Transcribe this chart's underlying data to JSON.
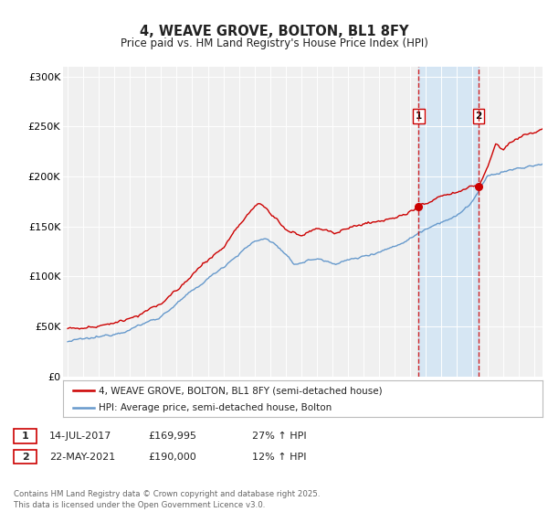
{
  "title": "4, WEAVE GROVE, BOLTON, BL1 8FY",
  "subtitle": "Price paid vs. HM Land Registry's House Price Index (HPI)",
  "legend_entry1": "4, WEAVE GROVE, BOLTON, BL1 8FY (semi-detached house)",
  "legend_entry2": "HPI: Average price, semi-detached house, Bolton",
  "annotation1_label": "1",
  "annotation1_date": "14-JUL-2017",
  "annotation1_price": "£169,995",
  "annotation1_hpi": "27% ↑ HPI",
  "annotation2_label": "2",
  "annotation2_date": "22-MAY-2021",
  "annotation2_price": "£190,000",
  "annotation2_hpi": "12% ↑ HPI",
  "footer": "Contains HM Land Registry data © Crown copyright and database right 2025.\nThis data is licensed under the Open Government Licence v3.0.",
  "ylim": [
    0,
    310000
  ],
  "yticks": [
    0,
    50000,
    100000,
    150000,
    200000,
    250000,
    300000
  ],
  "ytick_labels": [
    "£0",
    "£50K",
    "£100K",
    "£150K",
    "£200K",
    "£250K",
    "£300K"
  ],
  "price_color": "#cc0000",
  "hpi_color": "#6699cc",
  "vline_color": "#cc0000",
  "background_color": "#ffffff",
  "plot_bg_color": "#f0f0f0",
  "shade_color": "#d0e4f5",
  "marker1_year": 2017.54,
  "marker1_price": 169995,
  "marker2_year": 2021.39,
  "marker2_price": 190000,
  "xmin": 1995,
  "xmax": 2025.5
}
